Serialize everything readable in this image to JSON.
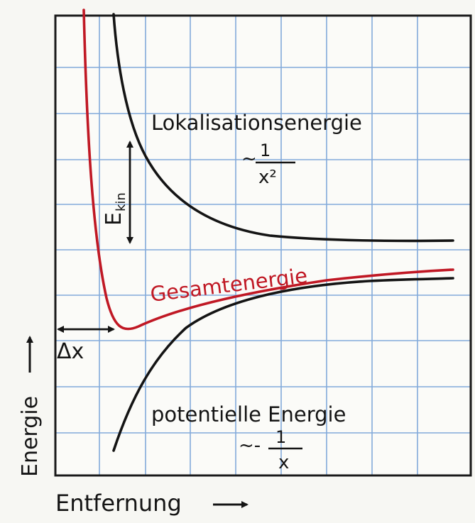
{
  "labels": {
    "top_curve_name": "Lokalisationsenergie",
    "top_curve_prop_prefix": "~",
    "top_curve_numerator": "1",
    "top_curve_denominator": "x²",
    "kinetic_base": "E",
    "kinetic_sub": "kin",
    "total_curve_name": "Gesamtenergie",
    "delta_x": "Δx",
    "bottom_curve_name": "potentielle Energie",
    "bottom_curve_prop_prefix": "~-",
    "bottom_curve_numerator": "1",
    "bottom_curve_denominator": "x",
    "y_axis": "Energie",
    "x_axis": "Entfernung"
  },
  "colors": {
    "grid": "#5b8fd0",
    "curve": "#141414",
    "total": "#c01824",
    "paper": "#f7f7f3"
  },
  "curves": {
    "localization": "proportional to 1/x²",
    "potential": "proportional to -1/x",
    "total": "sum, minimum at Δx"
  }
}
